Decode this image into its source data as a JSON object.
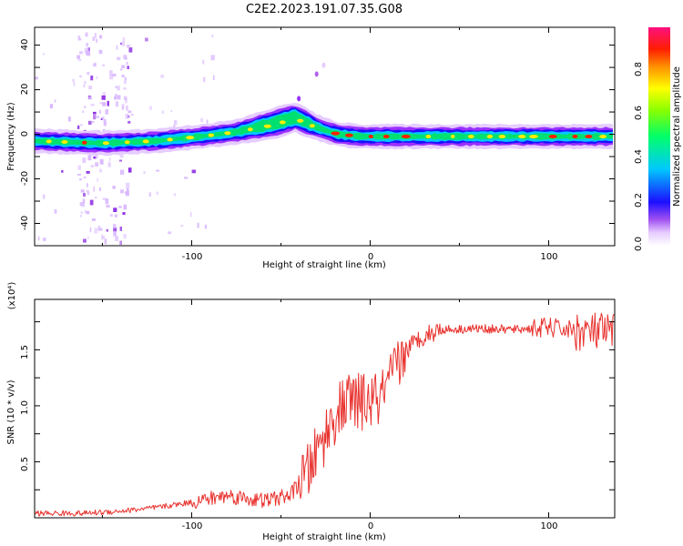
{
  "title": "C2E2.2023.191.07.35.G08",
  "colors": {
    "snr_line": "#e8322e",
    "axis": "#000000",
    "background": "#ffffff"
  },
  "chart_data": [
    {
      "type": "heatmap",
      "xlabel": "Height of straight line (km)",
      "ylabel": "Frequency (Hz)",
      "xlim": [
        -188,
        137
      ],
      "ylim": [
        -50,
        48
      ],
      "x_ticks": [
        "-100",
        "0",
        "100"
      ],
      "y_ticks": [
        "-40",
        "-20",
        "0",
        "20",
        "40"
      ],
      "colorbar": {
        "label": "Normalized spectral amplitude",
        "range": [
          0.0,
          1.0
        ],
        "ticks": [
          "0.0",
          "0.2",
          "0.4",
          "0.6",
          "0.8"
        ]
      },
      "ridge": [
        {
          "x": -188,
          "y": -3
        },
        {
          "x": -150,
          "y": -4
        },
        {
          "x": -120,
          "y": -3
        },
        {
          "x": -95,
          "y": -1
        },
        {
          "x": -75,
          "y": 1
        },
        {
          "x": -55,
          "y": 4
        },
        {
          "x": -42,
          "y": 7
        },
        {
          "x": -30,
          "y": 3
        },
        {
          "x": -18,
          "y": 0
        },
        {
          "x": -5,
          "y": -1
        },
        {
          "x": 10,
          "y": -1
        },
        {
          "x": 60,
          "y": -1
        },
        {
          "x": 137,
          "y": -1
        }
      ]
    },
    {
      "type": "line",
      "xlabel": "Height of straight line (km)",
      "ylabel": "SNR (10 * v/v)",
      "y_scale_label": "(x10⁴)",
      "xlim": [
        -188,
        137
      ],
      "ylim": [
        0,
        19500
      ],
      "x_ticks": [
        "-100",
        "0",
        "100"
      ],
      "y_ticks": [
        "0.5",
        "1.0",
        "1.5"
      ],
      "series": [
        {
          "x": [
            -188,
            -160,
            -140,
            -120,
            -100,
            -80,
            -60,
            -45,
            -35,
            -28,
            -20,
            -12,
            -5,
            5,
            10,
            15,
            20,
            30,
            40,
            60,
            80,
            100,
            120,
            137
          ],
          "values": [
            400,
            400,
            600,
            900,
            1400,
            2000,
            1500,
            2000,
            4000,
            6500,
            9000,
            10500,
            10300,
            10500,
            11500,
            13500,
            15000,
            16300,
            16800,
            16900,
            16800,
            17000,
            16600,
            16500
          ]
        }
      ]
    }
  ]
}
